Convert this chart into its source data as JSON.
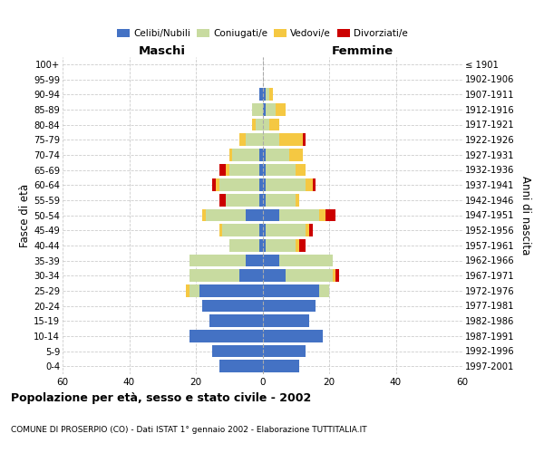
{
  "age_groups": [
    "0-4",
    "5-9",
    "10-14",
    "15-19",
    "20-24",
    "25-29",
    "30-34",
    "35-39",
    "40-44",
    "45-49",
    "50-54",
    "55-59",
    "60-64",
    "65-69",
    "70-74",
    "75-79",
    "80-84",
    "85-89",
    "90-94",
    "95-99",
    "100+"
  ],
  "birth_years": [
    "1997-2001",
    "1992-1996",
    "1987-1991",
    "1982-1986",
    "1977-1981",
    "1972-1976",
    "1967-1971",
    "1962-1966",
    "1957-1961",
    "1952-1956",
    "1947-1951",
    "1942-1946",
    "1937-1941",
    "1932-1936",
    "1927-1931",
    "1922-1926",
    "1917-1921",
    "1912-1916",
    "1907-1911",
    "1902-1906",
    "≤ 1901"
  ],
  "male": {
    "celibi": [
      13,
      15,
      22,
      16,
      18,
      19,
      7,
      5,
      1,
      1,
      5,
      1,
      1,
      1,
      1,
      0,
      0,
      0,
      1,
      0,
      0
    ],
    "coniugati": [
      0,
      0,
      0,
      0,
      0,
      3,
      15,
      17,
      9,
      11,
      12,
      10,
      12,
      9,
      8,
      5,
      2,
      3,
      0,
      0,
      0
    ],
    "vedovi": [
      0,
      0,
      0,
      0,
      0,
      1,
      0,
      0,
      0,
      1,
      1,
      0,
      1,
      1,
      1,
      2,
      1,
      0,
      0,
      0,
      0
    ],
    "divorziati": [
      0,
      0,
      0,
      0,
      0,
      0,
      0,
      0,
      0,
      0,
      0,
      2,
      1,
      2,
      0,
      0,
      0,
      0,
      0,
      0,
      0
    ]
  },
  "female": {
    "nubili": [
      11,
      13,
      18,
      14,
      16,
      17,
      7,
      5,
      1,
      1,
      5,
      1,
      1,
      1,
      1,
      0,
      0,
      1,
      1,
      0,
      0
    ],
    "coniugate": [
      0,
      0,
      0,
      0,
      0,
      3,
      14,
      16,
      9,
      12,
      12,
      9,
      12,
      9,
      7,
      5,
      2,
      3,
      1,
      0,
      0
    ],
    "vedove": [
      0,
      0,
      0,
      0,
      0,
      0,
      1,
      0,
      1,
      1,
      2,
      1,
      2,
      3,
      4,
      7,
      3,
      3,
      1,
      0,
      0
    ],
    "divorziate": [
      0,
      0,
      0,
      0,
      0,
      0,
      1,
      0,
      2,
      1,
      3,
      0,
      1,
      0,
      0,
      1,
      0,
      0,
      0,
      0,
      0
    ]
  },
  "color_celibi": "#4472C4",
  "color_coniugati": "#c8dba0",
  "color_vedovi": "#F5C842",
  "color_divorziati": "#CC0000",
  "xlim": 60,
  "title": "Popolazione per età, sesso e stato civile - 2002",
  "subtitle": "COMUNE DI PROSERPIO (CO) - Dati ISTAT 1° gennaio 2002 - Elaborazione TUTTITALIA.IT",
  "ylabel_left": "Fasce di età",
  "ylabel_right": "Anni di nascita",
  "xlabel_left": "Maschi",
  "xlabel_right": "Femmine"
}
